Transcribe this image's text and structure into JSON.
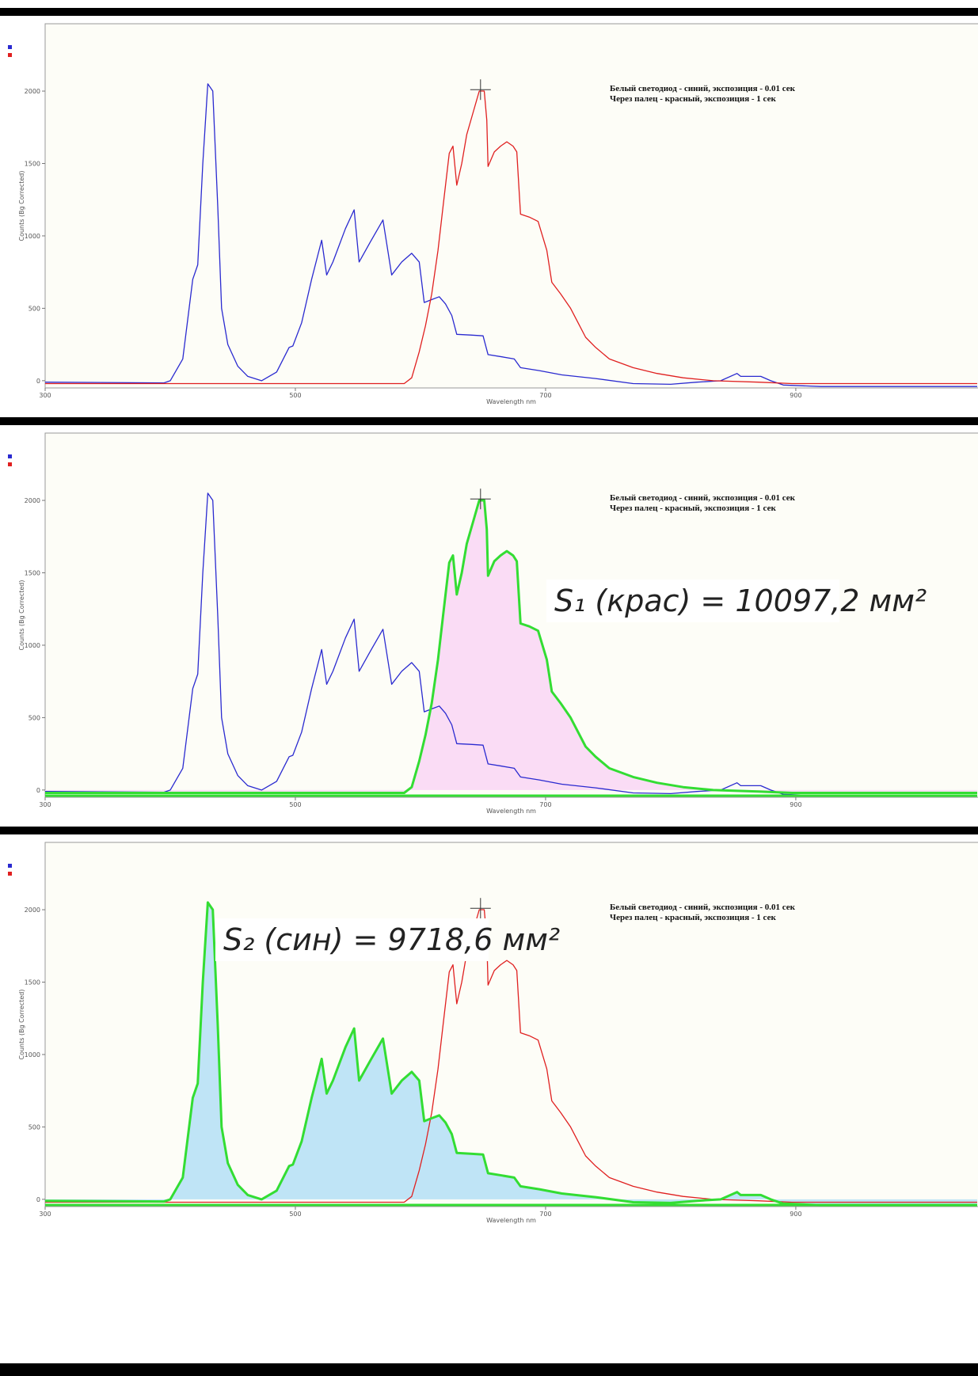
{
  "chart_data": [
    {
      "type": "line",
      "xlabel": "Wavelength nm",
      "ylabel": "Counts (Bg Corrected)",
      "xlim": [
        300,
        1045
      ],
      "ylim": [
        -50,
        2465
      ],
      "xticks": [
        300,
        500,
        700,
        900
      ],
      "yticks": [
        0,
        500,
        1000,
        1500,
        2000
      ],
      "series": [
        {
          "name": "Белый светодиод - синий, экспозиция - 0.01 сек",
          "color": "#2a2ad0",
          "x": [
            300,
            395,
            400,
            410,
            418,
            422,
            426,
            430,
            434,
            438,
            441,
            446,
            454,
            462,
            473,
            485,
            495,
            498,
            505,
            513,
            521,
            525,
            530,
            540,
            547,
            551,
            560,
            570,
            577,
            585,
            593,
            599,
            603,
            609,
            615,
            620,
            625,
            629,
            640,
            650,
            654,
            665,
            675,
            680,
            695,
            713,
            740,
            770,
            800,
            821,
            840,
            853,
            856,
            865,
            872,
            880,
            890,
            920,
            1045
          ],
          "values": [
            -10,
            -15,
            0,
            150,
            700,
            800,
            1500,
            2050,
            2000,
            1200,
            500,
            250,
            100,
            30,
            0,
            60,
            230,
            240,
            400,
            700,
            970,
            730,
            820,
            1050,
            1180,
            820,
            960,
            1110,
            730,
            820,
            880,
            820,
            540,
            560,
            580,
            530,
            450,
            320,
            315,
            310,
            180,
            165,
            150,
            90,
            70,
            40,
            15,
            -20,
            -25,
            -10,
            0,
            50,
            30,
            30,
            30,
            0,
            -30,
            -40,
            -40
          ]
        },
        {
          "name": "Через палец - красный, экспозиция - 1 сек",
          "color": "#e02020",
          "x": [
            300,
            587,
            593,
            599,
            604,
            609,
            614,
            618,
            623,
            626,
            629,
            633,
            637,
            642,
            647,
            651,
            653,
            654,
            659,
            664,
            669,
            674,
            677,
            680,
            687,
            694,
            701,
            705,
            712,
            720,
            726,
            732,
            740,
            751,
            770,
            789,
            810,
            834,
            870,
            897,
            1045
          ],
          "values": [
            -20,
            -20,
            20,
            200,
            380,
            600,
            900,
            1200,
            1570,
            1620,
            1350,
            1500,
            1700,
            1850,
            2000,
            2000,
            1800,
            1480,
            1580,
            1620,
            1650,
            1620,
            1580,
            1150,
            1130,
            1100,
            900,
            680,
            600,
            500,
            400,
            300,
            230,
            150,
            90,
            50,
            20,
            0,
            -10,
            -20,
            -20
          ]
        }
      ],
      "cursor": {
        "x": 648,
        "y": 2010
      }
    },
    {
      "type": "line",
      "xlabel": "Wavelength nm",
      "ylabel": "Counts (Bg Corrected)",
      "xlim": [
        300,
        1045
      ],
      "ylim": [
        -50,
        2465
      ],
      "xticks": [
        300,
        500,
        700,
        900
      ],
      "yticks": [
        0,
        500,
        1000,
        1500,
        2000
      ],
      "series": [
        {
          "name": "Белый светодиод - синий, экспозиция - 0.01 сек",
          "color": "#2a2ad0",
          "x": [
            300,
            395,
            400,
            410,
            418,
            422,
            426,
            430,
            434,
            438,
            441,
            446,
            454,
            462,
            473,
            485,
            495,
            498,
            505,
            513,
            521,
            525,
            530,
            540,
            547,
            551,
            560,
            570,
            577,
            585,
            593,
            599,
            603,
            609,
            615,
            620,
            625,
            629,
            640,
            650,
            654,
            665,
            675,
            680,
            695,
            713,
            740,
            770,
            800,
            821,
            840,
            853,
            856,
            865,
            872,
            880,
            890,
            920,
            1045
          ],
          "values": [
            -10,
            -15,
            0,
            150,
            700,
            800,
            1500,
            2050,
            2000,
            1200,
            500,
            250,
            100,
            30,
            0,
            60,
            230,
            240,
            400,
            700,
            970,
            730,
            820,
            1050,
            1180,
            820,
            960,
            1110,
            730,
            820,
            880,
            820,
            540,
            560,
            580,
            530,
            450,
            320,
            315,
            310,
            180,
            165,
            150,
            90,
            70,
            40,
            15,
            -20,
            -25,
            -10,
            0,
            50,
            30,
            30,
            30,
            0,
            -30,
            -40,
            -40
          ]
        },
        {
          "name": "Через палец - красный, экспозиция - 1 сек",
          "color": "#e02020",
          "x": [
            300,
            587,
            593,
            599,
            604,
            609,
            614,
            618,
            623,
            626,
            629,
            633,
            637,
            642,
            647,
            651,
            653,
            654,
            659,
            664,
            669,
            674,
            677,
            680,
            687,
            694,
            701,
            705,
            712,
            720,
            726,
            732,
            740,
            751,
            770,
            789,
            810,
            834,
            870,
            897,
            1045
          ],
          "values": [
            -20,
            -20,
            20,
            200,
            380,
            600,
            900,
            1200,
            1570,
            1620,
            1350,
            1500,
            1700,
            1850,
            2000,
            2000,
            1800,
            1480,
            1580,
            1620,
            1650,
            1620,
            1580,
            1150,
            1130,
            1100,
            900,
            680,
            600,
            500,
            400,
            300,
            230,
            150,
            90,
            50,
            20,
            0,
            -10,
            -20,
            -20
          ]
        }
      ],
      "cursor": {
        "x": 648,
        "y": 2010
      },
      "fill": {
        "series": 1,
        "color": "#fadcf5",
        "outline": "#33dd33"
      },
      "annotation": "S₁ (крас) = 10097,2 мм²"
    },
    {
      "type": "line",
      "xlabel": "Wavelength nm",
      "ylabel": "Counts (Bg Corrected)",
      "xlim": [
        300,
        1045
      ],
      "ylim": [
        -50,
        2465
      ],
      "xticks": [
        300,
        500,
        700,
        900
      ],
      "yticks": [
        0,
        500,
        1000,
        1500,
        2000
      ],
      "series": [
        {
          "name": "Белый светодиод - синий, экспозиция - 0.01 сек",
          "color": "#2a2ad0",
          "x": [
            300,
            395,
            400,
            410,
            418,
            422,
            426,
            430,
            434,
            438,
            441,
            446,
            454,
            462,
            473,
            485,
            495,
            498,
            505,
            513,
            521,
            525,
            530,
            540,
            547,
            551,
            560,
            570,
            577,
            585,
            593,
            599,
            603,
            609,
            615,
            620,
            625,
            629,
            640,
            650,
            654,
            665,
            675,
            680,
            695,
            713,
            740,
            770,
            800,
            821,
            840,
            853,
            856,
            865,
            872,
            880,
            890,
            920,
            1045
          ],
          "values": [
            -10,
            -15,
            0,
            150,
            700,
            800,
            1500,
            2050,
            2000,
            1200,
            500,
            250,
            100,
            30,
            0,
            60,
            230,
            240,
            400,
            700,
            970,
            730,
            820,
            1050,
            1180,
            820,
            960,
            1110,
            730,
            820,
            880,
            820,
            540,
            560,
            580,
            530,
            450,
            320,
            315,
            310,
            180,
            165,
            150,
            90,
            70,
            40,
            15,
            -20,
            -25,
            -10,
            0,
            50,
            30,
            30,
            30,
            0,
            -30,
            -40,
            -40
          ]
        },
        {
          "name": "Через палец - красный, экспозиция - 1 сек",
          "color": "#e02020",
          "x": [
            300,
            587,
            593,
            599,
            604,
            609,
            614,
            618,
            623,
            626,
            629,
            633,
            637,
            642,
            647,
            651,
            653,
            654,
            659,
            664,
            669,
            674,
            677,
            680,
            687,
            694,
            701,
            705,
            712,
            720,
            726,
            732,
            740,
            751,
            770,
            789,
            810,
            834,
            870,
            897,
            1045
          ],
          "values": [
            -20,
            -20,
            20,
            200,
            380,
            600,
            900,
            1200,
            1570,
            1620,
            1350,
            1500,
            1700,
            1850,
            2000,
            2000,
            1800,
            1480,
            1580,
            1620,
            1650,
            1620,
            1580,
            1150,
            1130,
            1100,
            900,
            680,
            600,
            500,
            400,
            300,
            230,
            150,
            90,
            50,
            20,
            0,
            -10,
            -20,
            -20
          ]
        }
      ],
      "cursor": {
        "x": 648,
        "y": 2010
      },
      "fill": {
        "series": 0,
        "color": "#bfe4f6",
        "outline": "#33dd33"
      },
      "annotation": "S₂ (син) = 9718,6 мм²"
    }
  ]
}
